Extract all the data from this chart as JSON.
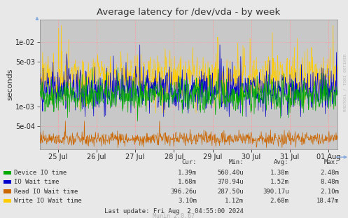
{
  "title": "Average latency for /dev/vda - by week",
  "ylabel": "seconds",
  "background_color": "#e8e8e8",
  "plot_bg_color": "#c8c8c8",
  "grid_color": "#ff9999",
  "x_labels": [
    "25 Jul",
    "26 Jul",
    "27 Jul",
    "28 Jul",
    "29 Jul",
    "30 Jul",
    "31 Jul",
    "01 Aug"
  ],
  "y_ticks": [
    0.0005,
    0.001,
    0.005,
    0.01
  ],
  "ylim": [
    0.00022,
    0.022
  ],
  "legend": [
    {
      "label": "Device IO time",
      "color": "#00aa00"
    },
    {
      "label": "IO Wait time",
      "color": "#0000cc"
    },
    {
      "label": "Read IO Wait time",
      "color": "#cc6600"
    },
    {
      "label": "Write IO Wait time",
      "color": "#ffcc00"
    }
  ],
  "table_headers": [
    "Cur:",
    "Min:",
    "Avg:",
    "Max:"
  ],
  "table_rows": [
    [
      "1.39m",
      "560.40u",
      "1.38m",
      "2.48m"
    ],
    [
      "1.68m",
      "370.94u",
      "1.52m",
      "8.48m"
    ],
    [
      "396.26u",
      "287.50u",
      "390.17u",
      "2.10m"
    ],
    [
      "3.10m",
      "1.12m",
      "2.68m",
      "18.47m"
    ]
  ],
  "last_update": "Last update: Fri Aug  2 04:55:00 2024",
  "munin_version": "Munin 2.0.67",
  "rrdtool_label": "RRDTOOL / TOBI OETIKER",
  "n_points": 800,
  "seed": 42,
  "green_base": 0.0015,
  "blue_base": 0.0018,
  "orange_base": 0.00032,
  "yellow_base": 0.0028
}
